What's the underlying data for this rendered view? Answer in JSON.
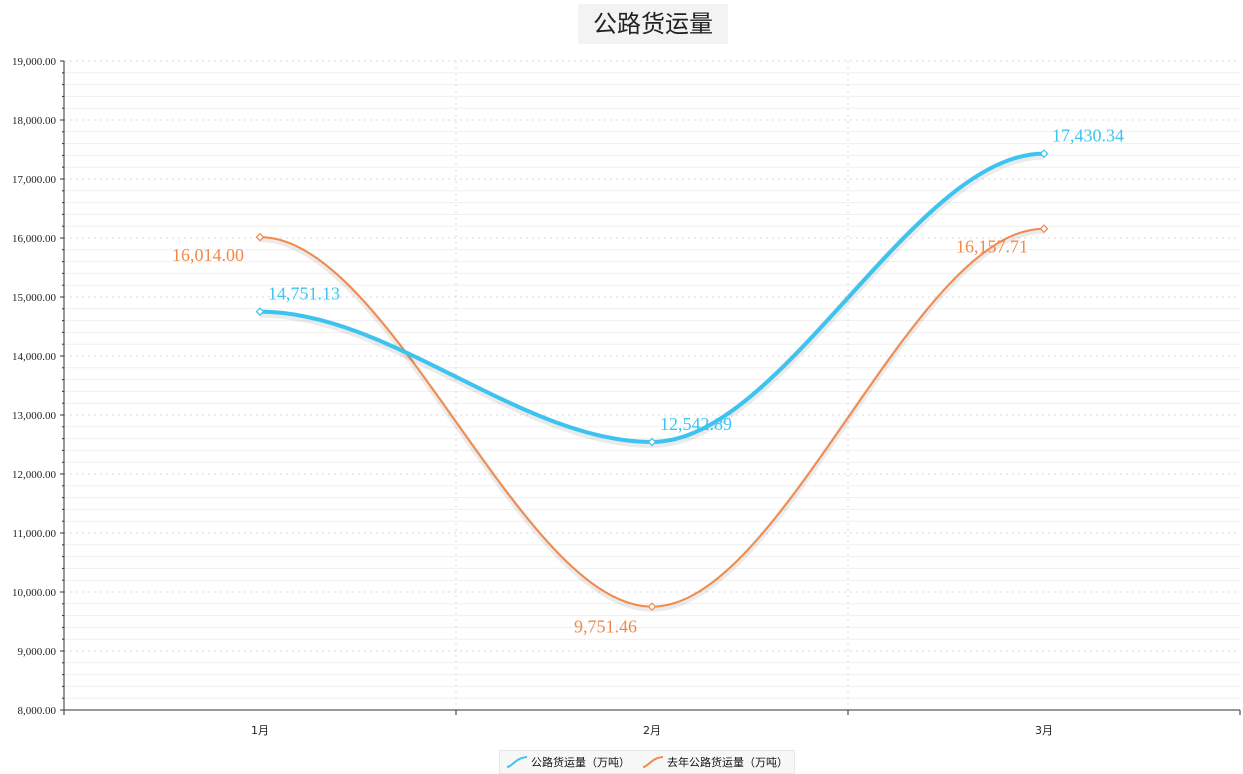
{
  "chart_data": {
    "type": "line",
    "title": "公路货运量",
    "xlabel": "",
    "ylabel": "",
    "categories": [
      "1月",
      "2月",
      "3月"
    ],
    "ylim": [
      8000,
      19000
    ],
    "ytick_step": 1000,
    "ytick_labels": [
      "8,000.00",
      "9,000.00",
      "10,000.00",
      "11,000.00",
      "12,000.00",
      "13,000.00",
      "14,000.00",
      "15,000.00",
      "16,000.00",
      "17,000.00",
      "18,000.00",
      "19,000.00"
    ],
    "grid": true,
    "smooth": true,
    "legend_position": "bottom-center",
    "series": [
      {
        "name": "公路货运量（万吨）",
        "values": [
          14751.13,
          12542.89,
          17430.34
        ],
        "labels": [
          "14,751.13",
          "12,542.89",
          "17,430.34"
        ],
        "color": "#3cc3ef"
      },
      {
        "name": "去年公路货运量（万吨）",
        "values": [
          16014.0,
          9751.46,
          16157.71
        ],
        "labels": [
          "16,014.00",
          "9,751.46",
          "16,157.71"
        ],
        "color": "#f2894a"
      }
    ]
  }
}
